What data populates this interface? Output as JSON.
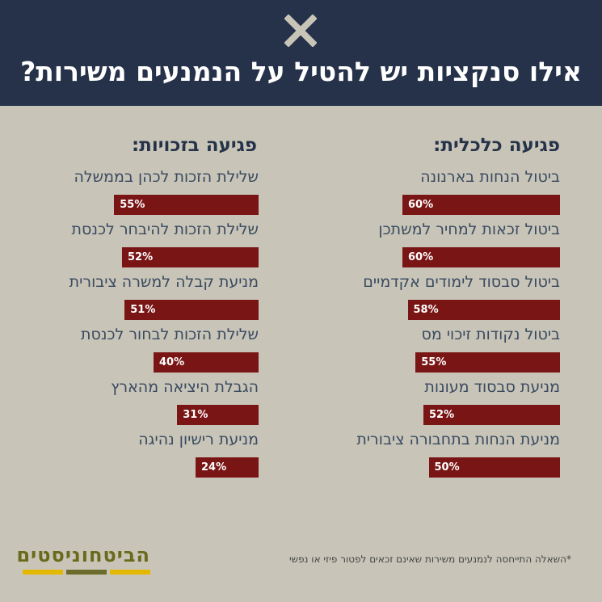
{
  "header": {
    "title": "אילו סנקציות יש להטיל על הנמנעים משירות?",
    "icon": "close-icon"
  },
  "columns": {
    "economic_heading": "פגיעה כלכלית:",
    "rights_heading": "פגיעה בזכויות:"
  },
  "footnote": "*השאלה התייחסה לנמנעים משירות שאינם זכאים לפטור פיזי או נפשי",
  "logo": {
    "text": "הביטחוניסטים",
    "colors": [
      "#e5b800",
      "#6b6b2a",
      "#e5b800"
    ]
  },
  "colors": {
    "header_bg": "#253249",
    "page_bg": "#c8c5b8",
    "bar": "#7a1515"
  },
  "chart_data": [
    {
      "type": "bar",
      "title": "פגיעה כלכלית:",
      "categories": [
        "ביטול הנחות בארנונה",
        "ביטול זכאות למחיר למשתכן",
        "ביטול סבסוד לימודים אקדמיים",
        "ביטול נקודות זיכוי מס",
        "מניעת סבסוד מעונות",
        "מניעת הנחות בתחבורה ציבורית"
      ],
      "values": [
        60,
        60,
        58,
        55,
        52,
        50
      ],
      "value_labels": [
        "60%",
        "60%",
        "58%",
        "55%",
        "52%",
        "50%"
      ],
      "unit": "%",
      "ylim": [
        0,
        100
      ],
      "orientation": "horizontal"
    },
    {
      "type": "bar",
      "title": "פגיעה בזכויות:",
      "categories": [
        "שלילת הזכות לכהן בממשלה",
        "שלילת הזכות להיבחר לכנסת",
        "מניעת קבלה למשרה ציבורית",
        "שלילת הזכות לבחור לכנסת",
        "הגבלת היציאה מהארץ",
        "מניעת רישיון נהיגה"
      ],
      "values": [
        55,
        52,
        51,
        40,
        31,
        24
      ],
      "value_labels": [
        "55%",
        "52%",
        "51%",
        "40%",
        "31%",
        "24%"
      ],
      "unit": "%",
      "ylim": [
        0,
        100
      ],
      "orientation": "horizontal"
    }
  ]
}
